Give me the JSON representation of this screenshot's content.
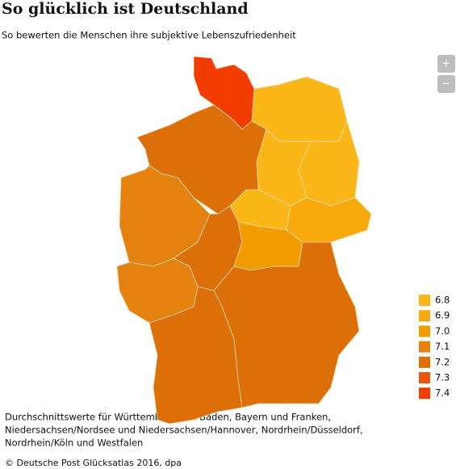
{
  "title": "So glücklich ist Deutschland",
  "subtitle": "So bewerten die Menschen ihre subjektive Lebenszufriedenheit",
  "zoom": {
    "in": "+",
    "out": "−"
  },
  "legend": [
    {
      "value": 6.8,
      "color": "#fbb718"
    },
    {
      "value": 6.9,
      "color": "#f8a90c"
    },
    {
      "value": {
        "value": 7,
        "label": "7.0"
      },
      "color": "#f39c00"
    },
    {
      "value": 7.1,
      "color": "#e5820f"
    },
    {
      "value": 7.2,
      "color": "#dd6f08"
    },
    {
      "value": 7.3,
      "color": "#e8550d"
    },
    {
      "value": 7.4,
      "color": "#f23c00"
    }
  ],
  "no_data_color": "#8a8a8a",
  "regions": [
    7.4,
    null,
    6.8,
    6.8,
    6.8,
    6.8,
    6.9,
    7.2,
    7.1,
    7.2,
    7.1,
    7,
    7.2,
    7.2
  ],
  "note": [
    "Durchschnittswerte für Württemberg und Baden, Bayern und Franken,",
    "Niedersachsen/Nordsee und Niedersachsen/Hannover, Nordrhein/Düsseldorf,",
    "Nordrhein/Köln und Westfalen"
  ],
  "source": "© Deutsche Post Glücksatlas 2016, dpa"
}
